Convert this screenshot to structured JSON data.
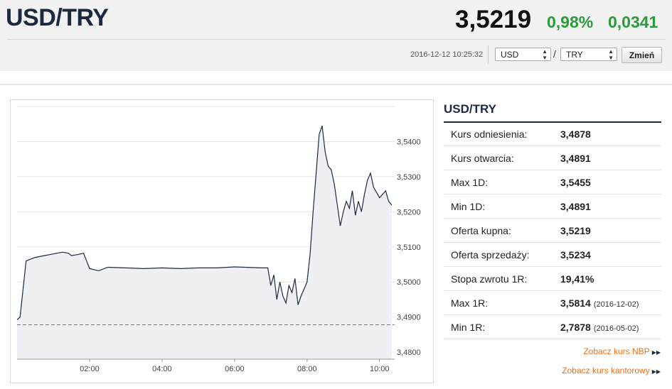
{
  "header": {
    "pair": "USD/TRY",
    "price": "3,5219",
    "change_pct": "0,98%",
    "change_abs": "0,0341",
    "timestamp": "2016-12-12 10:25:32",
    "base_currency": "USD",
    "quote_currency": "TRY",
    "separator": "/",
    "change_button": "Zmień"
  },
  "sidebar": {
    "title": "USD/TRY",
    "rows": [
      {
        "label": "Kurs odniesienia:",
        "value": "3,4878",
        "date": ""
      },
      {
        "label": "Kurs otwarcia:",
        "value": "3,4891",
        "date": ""
      },
      {
        "label": "Max 1D:",
        "value": "3,5455",
        "date": ""
      },
      {
        "label": "Min 1D:",
        "value": "3,4891",
        "date": ""
      },
      {
        "label": "Oferta kupna:",
        "value": "3,5219",
        "date": ""
      },
      {
        "label": "Oferta sprzedaży:",
        "value": "3,5234",
        "date": ""
      },
      {
        "label": "Stopa zwrotu 1R:",
        "value": "19,41%",
        "date": ""
      },
      {
        "label": "Max 1R:",
        "value": "3,5814",
        "date": "(2016-12-02)"
      },
      {
        "label": "Min 1R:",
        "value": "2,7878",
        "date": "(2016-05-02)"
      }
    ],
    "links": [
      {
        "label": "Zobacz kurs NBP"
      },
      {
        "label": "Zobacz kurs kantorowy"
      }
    ]
  },
  "colors": {
    "up": "#2a9a3b",
    "line": "#1b2a3f",
    "fill": "#eef0f4",
    "reference": "#e05555",
    "link": "#e8711f"
  },
  "chart_data": {
    "type": "area",
    "x_ticks": [
      "02:00",
      "04:00",
      "06:00",
      "08:00",
      "10:00"
    ],
    "y_ticks": [
      "3,5400",
      "3,5300",
      "3,5200",
      "3,5100",
      "3,5000",
      "3,4900",
      "3,4800"
    ],
    "ylim": [
      3.478,
      3.55
    ],
    "reference_value": 3.4878,
    "series": [
      {
        "x": [
          "00:00",
          "00:05",
          "00:15",
          "00:30",
          "00:45",
          "01:00",
          "01:15",
          "01:25",
          "01:30",
          "01:40",
          "01:50",
          "02:00",
          "02:15",
          "02:30",
          "03:00",
          "03:30",
          "04:00",
          "04:30",
          "05:00",
          "05:30",
          "06:00",
          "06:30",
          "06:45",
          "06:55",
          "07:00",
          "07:05",
          "07:10",
          "07:15",
          "07:20",
          "07:25",
          "07:30",
          "07:35",
          "07:40",
          "07:45",
          "07:50",
          "07:55",
          "08:00",
          "08:05",
          "08:10",
          "08:15",
          "08:20",
          "08:25",
          "08:30",
          "08:35",
          "08:40",
          "08:45",
          "08:50",
          "08:55",
          "09:00",
          "09:05",
          "09:10",
          "09:15",
          "09:20",
          "09:25",
          "09:30",
          "09:35",
          "09:40",
          "09:45",
          "09:50",
          "10:00",
          "10:10",
          "10:15",
          "10:20"
        ],
        "y": [
          3.4892,
          3.49,
          3.506,
          3.507,
          3.5075,
          3.508,
          3.5085,
          3.5082,
          3.5075,
          3.5078,
          3.5082,
          3.5038,
          3.5032,
          3.5042,
          3.504,
          3.5038,
          3.504,
          3.5038,
          3.504,
          3.504,
          3.5043,
          3.5041,
          3.504,
          3.504,
          3.499,
          3.502,
          3.495,
          3.5,
          3.496,
          3.494,
          3.499,
          3.497,
          3.501,
          3.4935,
          3.496,
          3.498,
          3.5,
          3.508,
          3.52,
          3.531,
          3.542,
          3.5445,
          3.537,
          3.533,
          3.532,
          3.528,
          3.522,
          3.516,
          3.52,
          3.523,
          3.521,
          3.526,
          3.519,
          3.523,
          3.52,
          3.525,
          3.529,
          3.531,
          3.527,
          3.524,
          3.526,
          3.523,
          3.5219
        ]
      }
    ]
  }
}
